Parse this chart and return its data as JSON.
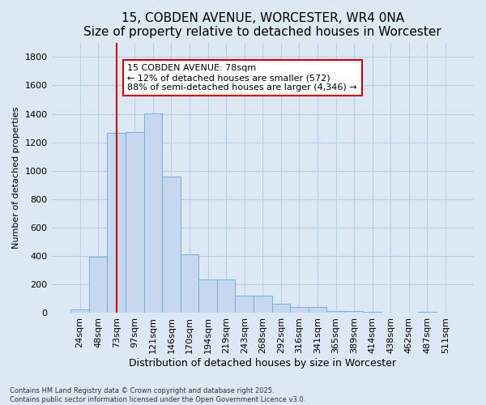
{
  "title": "15, COBDEN AVENUE, WORCESTER, WR4 0NA",
  "subtitle": "Size of property relative to detached houses in Worcester",
  "xlabel": "Distribution of detached houses by size in Worcester",
  "ylabel": "Number of detached properties",
  "categories": [
    "24sqm",
    "48sqm",
    "73sqm",
    "97sqm",
    "121sqm",
    "146sqm",
    "170sqm",
    "194sqm",
    "219sqm",
    "243sqm",
    "268sqm",
    "292sqm",
    "316sqm",
    "341sqm",
    "365sqm",
    "389sqm",
    "414sqm",
    "438sqm",
    "462sqm",
    "487sqm",
    "511sqm"
  ],
  "values": [
    25,
    395,
    1265,
    1270,
    1405,
    960,
    415,
    235,
    235,
    120,
    120,
    65,
    40,
    40,
    15,
    15,
    10,
    5,
    5,
    10,
    0
  ],
  "bar_color": "#c5d8ee",
  "bar_edgecolor": "#7aafd4",
  "vline_x": 2.5,
  "vline_color": "#cc0000",
  "annotation_text": "15 COBDEN AVENUE: 78sqm\n← 12% of detached houses are smaller (572)\n88% of semi-detached houses are larger (4,346) →",
  "annotation_box_color": "#cc0000",
  "ylim": [
    0,
    1900
  ],
  "yticks": [
    0,
    200,
    400,
    600,
    800,
    1000,
    1200,
    1400,
    1600,
    1800
  ],
  "footnote": "Contains HM Land Registry data © Crown copyright and database right 2025.\nContains public sector information licensed under the Open Government Licence v3.0.",
  "bg_color": "#dde8f5",
  "plot_bg_color": "#dde8f5",
  "grid_color": "#b8cde8",
  "title_fontsize": 11,
  "subtitle_fontsize": 9,
  "xlabel_fontsize": 9,
  "ylabel_fontsize": 8,
  "tick_fontsize": 8,
  "ann_fontsize": 8
}
